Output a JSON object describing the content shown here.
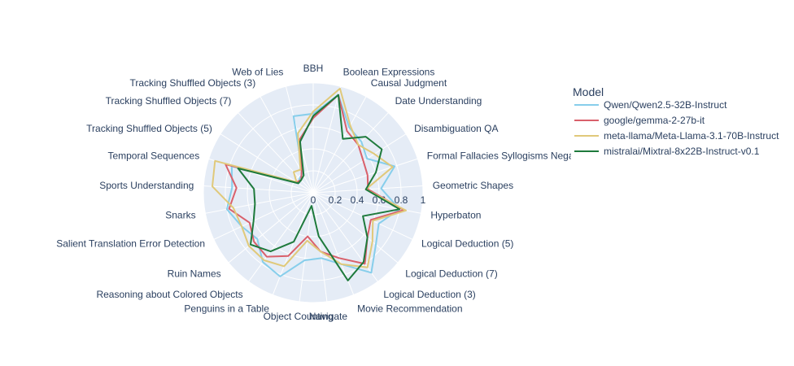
{
  "chart_data": {
    "type": "radar",
    "categories": [
      "BBH",
      "Boolean Expressions",
      "Causal Judgment",
      "Date Understanding",
      "Disambiguation QA",
      "Formal Fallacies Syllogisms Negation",
      "Geometric Shapes",
      "Hyperbaton",
      "Logical Deduction (5)",
      "Logical Deduction (7)",
      "Logical Deduction (3)",
      "Movie Recommendation",
      "Navigate",
      "Object Counting",
      "Penguins in a Table",
      "Reasoning about Colored Objects",
      "Ruin Names",
      "Salient Translation Error Detection",
      "Snarks",
      "Sports Understanding",
      "Temporal Sequences",
      "Tracking Shuffled Objects (5)",
      "Tracking Shuffled Objects (7)",
      "Tracking Shuffled Objects (3)",
      "Web of Lies"
    ],
    "radial_range": [
      0,
      1
    ],
    "radial_ticks": [
      "0",
      "0.2",
      "0.4",
      "0.6",
      "0.8",
      "1"
    ],
    "legend_title": "Model",
    "legend_position": "top-right",
    "series": [
      {
        "name": "Qwen/Qwen2.5-32B-Instruct",
        "color": "#87ceeb",
        "values": [
          0.72,
          0.92,
          0.68,
          0.64,
          0.58,
          0.78,
          0.62,
          0.8,
          0.66,
          0.74,
          0.9,
          0.7,
          0.6,
          0.62,
          0.82,
          0.78,
          0.66,
          0.72,
          0.8,
          0.74,
          0.78,
          0.16,
          0.18,
          0.2,
          0.72
        ]
      },
      {
        "name": "google/gemma-2-27b-it",
        "color": "#d9606b",
        "values": [
          0.68,
          0.92,
          0.64,
          0.6,
          0.54,
          0.52,
          0.5,
          0.84,
          0.58,
          0.64,
          0.8,
          0.64,
          0.54,
          0.4,
          0.62,
          0.72,
          0.7,
          0.64,
          0.78,
          0.7,
          0.84,
          0.18,
          0.16,
          0.22,
          0.5
        ]
      },
      {
        "name": "meta-llama/Meta-Llama-3.1-70B-Instruct",
        "color": "#e0c97a",
        "values": [
          0.74,
          0.98,
          0.7,
          0.6,
          0.66,
          0.76,
          0.48,
          0.86,
          0.6,
          0.7,
          0.84,
          0.7,
          0.54,
          0.44,
          0.72,
          0.76,
          0.76,
          0.72,
          0.74,
          0.92,
          0.94,
          0.18,
          0.26,
          0.24,
          0.56
        ]
      },
      {
        "name": "mistralai/Mixtral-8x22B-Instruct-v0.1",
        "color": "#1e7a3c",
        "values": [
          0.7,
          0.92,
          0.56,
          0.7,
          0.74,
          0.6,
          0.48,
          0.8,
          0.5,
          0.64,
          0.78,
          0.86,
          0.4,
          0.12,
          0.48,
          0.66,
          0.74,
          0.6,
          0.54,
          0.54,
          0.72,
          0.16,
          0.16,
          0.18,
          0.48
        ]
      }
    ]
  }
}
